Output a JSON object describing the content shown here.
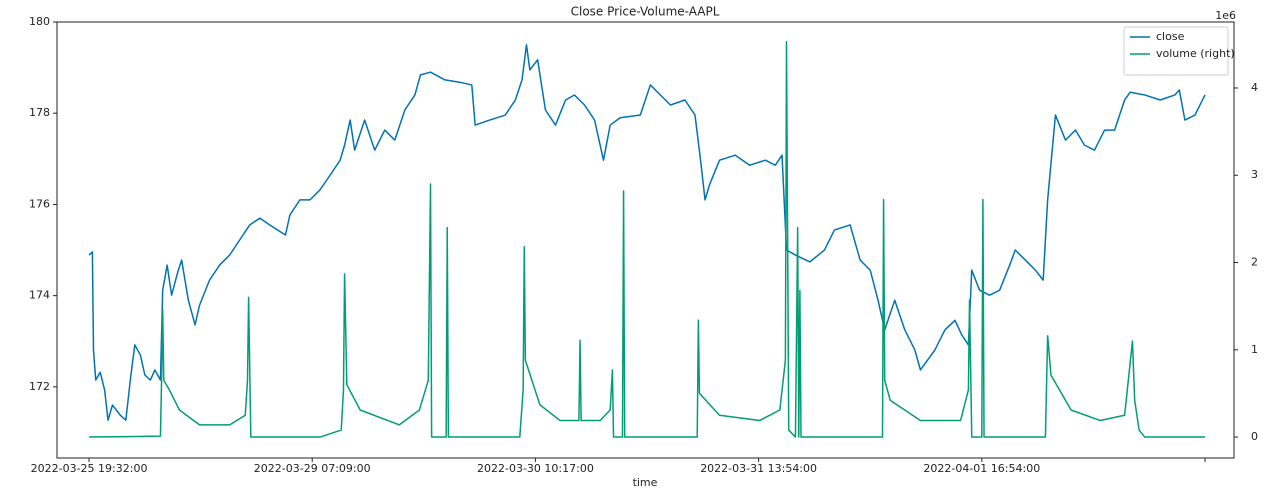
{
  "chart_data": {
    "type": "line",
    "title": "Close Price-Volume-AAPL",
    "x_label": "time",
    "y2_offset_label": "1e6",
    "xlim": [
      -28.7,
      1026
    ],
    "ylim": [
      170.44,
      180
    ],
    "y2lim": [
      -0.24,
      4.756
    ],
    "xticks": [
      {
        "value": 0,
        "label": "2022-03-25 19:32:00"
      },
      {
        "value": 200,
        "label": "2022-03-29 07:09:00"
      },
      {
        "value": 400,
        "label": "2022-03-30 10:17:00"
      },
      {
        "value": 600,
        "label": "2022-03-31 13:54:00"
      },
      {
        "value": 800,
        "label": "2022-04-01 16:54:00"
      },
      {
        "value": 1000,
        "label": null
      }
    ],
    "yticks": [
      172,
      174,
      176,
      178,
      180
    ],
    "y2ticks": [
      0,
      1,
      2,
      3,
      4
    ],
    "grid": false,
    "legend": "upper right",
    "series": [
      {
        "name": "close",
        "color": "#0173b2",
        "x": [
          0,
          3,
          4,
          6,
          10,
          14,
          17,
          21,
          28,
          33,
          37,
          41,
          46,
          50,
          55,
          59,
          64,
          66,
          70,
          74,
          80,
          83,
          89,
          95,
          99,
          108,
          117,
          126,
          135,
          144,
          153,
          162,
          176,
          180,
          189,
          198,
          207,
          216,
          225,
          229,
          234,
          238,
          247,
          256,
          265,
          274,
          283,
          292,
          297,
          306,
          319,
          332,
          343,
          346,
          359,
          373,
          382,
          388,
          392,
          395,
          402,
          409,
          418,
          427,
          435,
          444,
          453,
          461,
          467,
          476,
          494,
          503,
          512,
          521,
          534,
          543,
          548,
          552,
          556,
          565,
          579,
          592,
          606,
          615,
          621,
          625,
          633,
          646,
          659,
          668,
          682,
          691,
          700,
          707,
          713,
          722,
          731,
          740,
          745,
          758,
          767,
          776,
          782,
          788,
          791,
          798,
          807,
          816,
          825,
          830,
          839,
          848,
          855,
          859,
          866,
          875,
          884,
          892,
          901,
          910,
          919,
          928,
          933,
          946,
          960,
          973,
          977,
          982,
          991,
          1000
        ],
        "values": [
          174.89,
          174.96,
          172.81,
          172.15,
          172.32,
          171.93,
          171.27,
          171.6,
          171.38,
          171.27,
          172.15,
          172.92,
          172.7,
          172.26,
          172.15,
          172.37,
          172.15,
          174.12,
          174.67,
          174.01,
          174.56,
          174.78,
          173.9,
          173.36,
          173.79,
          174.34,
          174.67,
          174.89,
          175.22,
          175.55,
          175.7,
          175.55,
          175.33,
          175.77,
          176.1,
          176.1,
          176.32,
          176.64,
          176.97,
          177.3,
          177.85,
          177.19,
          177.85,
          177.19,
          177.63,
          177.41,
          178.07,
          178.4,
          178.84,
          178.9,
          178.73,
          178.68,
          178.62,
          177.74,
          177.85,
          177.96,
          178.29,
          178.73,
          179.5,
          178.95,
          179.17,
          178.07,
          177.74,
          178.29,
          178.4,
          178.18,
          177.85,
          176.97,
          177.74,
          177.9,
          177.96,
          178.62,
          178.4,
          178.18,
          178.29,
          177.96,
          176.97,
          176.1,
          176.43,
          176.97,
          177.08,
          176.86,
          176.97,
          176.86,
          177.08,
          175.0,
          174.89,
          174.74,
          175.0,
          175.44,
          175.55,
          174.78,
          174.56,
          173.9,
          173.25,
          173.9,
          173.25,
          172.81,
          172.37,
          172.81,
          173.25,
          173.46,
          173.14,
          172.92,
          174.56,
          174.12,
          174.01,
          174.12,
          174.67,
          175.0,
          174.78,
          174.56,
          174.34,
          176.1,
          177.96,
          177.41,
          177.63,
          177.3,
          177.19,
          177.63,
          177.63,
          178.29,
          178.46,
          178.4,
          178.29,
          178.4,
          178.51,
          177.85,
          177.96,
          178.4
        ]
      },
      {
        "name": "volume (right)",
        "color": "#029e73",
        "axis": "y2",
        "x": [
          0,
          64,
          65,
          66,
          67,
          72,
          81,
          99,
          126,
          140,
          142,
          143,
          145,
          207,
          226,
          228,
          229,
          231,
          243,
          278,
          296,
          304,
          306,
          307,
          320,
          321,
          322,
          386,
          389,
          390,
          391,
          404,
          422,
          439,
          440,
          441,
          458,
          467,
          469,
          470,
          478,
          479,
          480,
          545,
          546,
          547,
          565,
          601,
          619,
          624,
          625,
          627,
          633,
          635,
          636,
          637,
          638,
          711,
          712,
          713,
          718,
          745,
          781,
          788,
          789,
          791,
          800,
          801,
          802,
          857,
          859,
          862,
          880,
          906,
          928,
          935,
          937,
          941,
          946,
          1000
        ],
        "values": [
          0,
          0.01,
          0.65,
          1.46,
          0.65,
          0.54,
          0.31,
          0.14,
          0.14,
          0.25,
          0.65,
          1.6,
          0,
          0,
          0.08,
          0.54,
          1.87,
          0.6,
          0.31,
          0.14,
          0.31,
          0.65,
          2.9,
          0,
          0,
          2.4,
          0,
          0,
          0.54,
          2.18,
          0.88,
          0.37,
          0.19,
          0.19,
          1.11,
          0.19,
          0.19,
          0.31,
          0.77,
          0,
          0,
          2.82,
          0,
          0,
          1.34,
          0.5,
          0.25,
          0.19,
          0.31,
          0.88,
          4.53,
          0.08,
          0,
          2.4,
          0,
          1.68,
          0,
          0,
          2.72,
          0.65,
          0.42,
          0.19,
          0.19,
          0.54,
          1.57,
          0,
          0,
          2.72,
          0,
          0,
          1.16,
          0.71,
          0.31,
          0.19,
          0.25,
          1.1,
          0.42,
          0.08,
          0,
          0
        ]
      }
    ]
  }
}
